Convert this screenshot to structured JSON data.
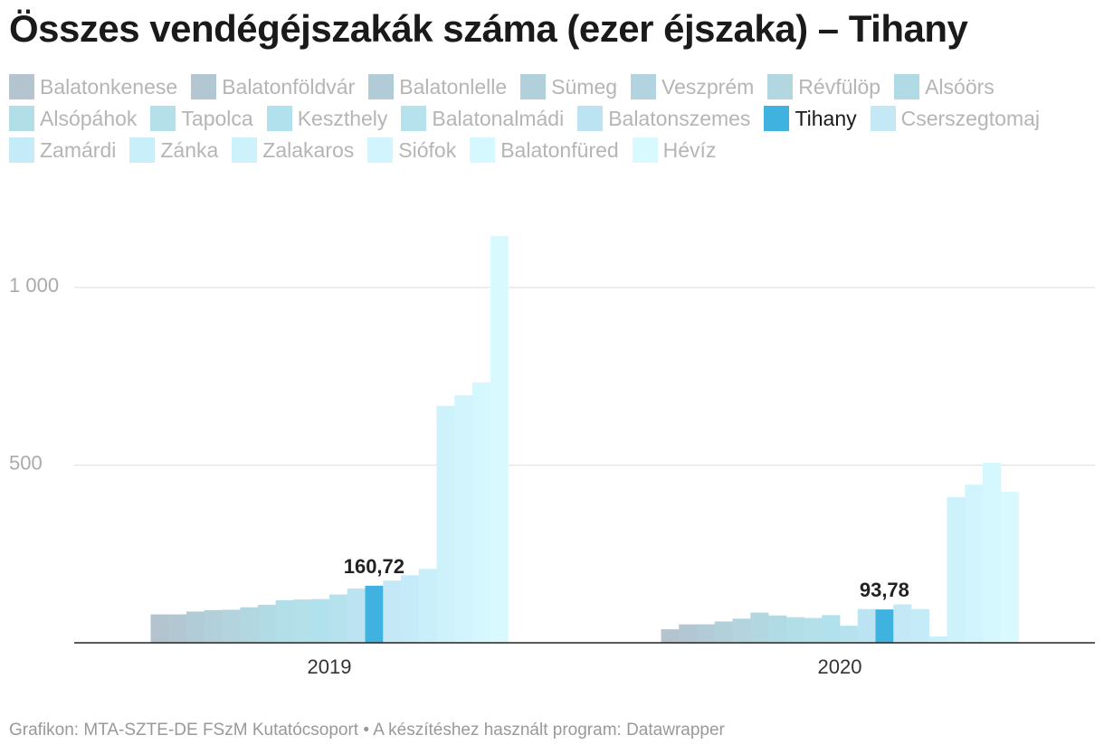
{
  "chart_data": {
    "type": "bar",
    "title": "Összes vendégéjszakák száma (ezer éjszaka) – Tihany",
    "categories": [
      "2019",
      "2020"
    ],
    "highlight": "Tihany",
    "ylim": [
      0,
      1250
    ],
    "yticks": [
      {
        "value": 500,
        "label": "500"
      },
      {
        "value": 1000,
        "label": "1 000"
      }
    ],
    "grid": true,
    "value_labels": [
      {
        "series": "Tihany",
        "category": "2019",
        "label": "160,72"
      },
      {
        "series": "Tihany",
        "category": "2020",
        "label": "93,78"
      }
    ],
    "series": [
      {
        "name": "Balatonkenese",
        "color": "#b3c4cf",
        "values": [
          80,
          38
        ]
      },
      {
        "name": "Balatonföldvár",
        "color": "#b3c7d2",
        "values": [
          80,
          52
        ]
      },
      {
        "name": "Balatonlelle",
        "color": "#b1ccd6",
        "values": [
          88,
          52
        ]
      },
      {
        "name": "Sümeg",
        "color": "#b1d0da",
        "values": [
          92,
          60
        ]
      },
      {
        "name": "Veszprém",
        "color": "#b3d4de",
        "values": [
          93,
          68
        ]
      },
      {
        "name": "Révfülöp",
        "color": "#b3d7e1",
        "values": [
          100,
          85
        ]
      },
      {
        "name": "Alsóörs",
        "color": "#b0dbe4",
        "values": [
          107,
          77
        ]
      },
      {
        "name": "Alsópáhok",
        "color": "#b2dee7",
        "values": [
          120,
          72
        ]
      },
      {
        "name": "Tapolca",
        "color": "#b4e0ea",
        "values": [
          122,
          70
        ]
      },
      {
        "name": "Keszthely",
        "color": "#b1e1ec",
        "values": [
          123,
          78
        ]
      },
      {
        "name": "Balatonalmádi",
        "color": "#b6e2ee",
        "values": [
          136,
          48
        ]
      },
      {
        "name": "Balatonszemes",
        "color": "#bce3f2",
        "values": [
          153,
          95
        ]
      },
      {
        "name": "Tihany",
        "color": "#3fb2e0",
        "values": [
          160.72,
          93.78
        ]
      },
      {
        "name": "Cserszegtomaj",
        "color": "#c4e8f6",
        "values": [
          175,
          108
        ]
      },
      {
        "name": "Zamárdi",
        "color": "#c5ebf9",
        "values": [
          190,
          95
        ]
      },
      {
        "name": "Zánka",
        "color": "#c9effa",
        "values": [
          208,
          18
        ]
      },
      {
        "name": "Zalakaros",
        "color": "#cef2fb",
        "values": [
          667,
          410
        ]
      },
      {
        "name": "Siófok",
        "color": "#d2f5fd",
        "values": [
          697,
          445
        ]
      },
      {
        "name": "Balatonfüred",
        "color": "#d5f7fe",
        "values": [
          733,
          507
        ]
      },
      {
        "name": "Hévíz",
        "color": "#d8f9fe",
        "values": [
          1145,
          425
        ]
      }
    ]
  },
  "footer": "Grafikon: MTA-SZTE-DE FSzM Kutatócsoport • A készítéshez használt program: Datawrapper"
}
